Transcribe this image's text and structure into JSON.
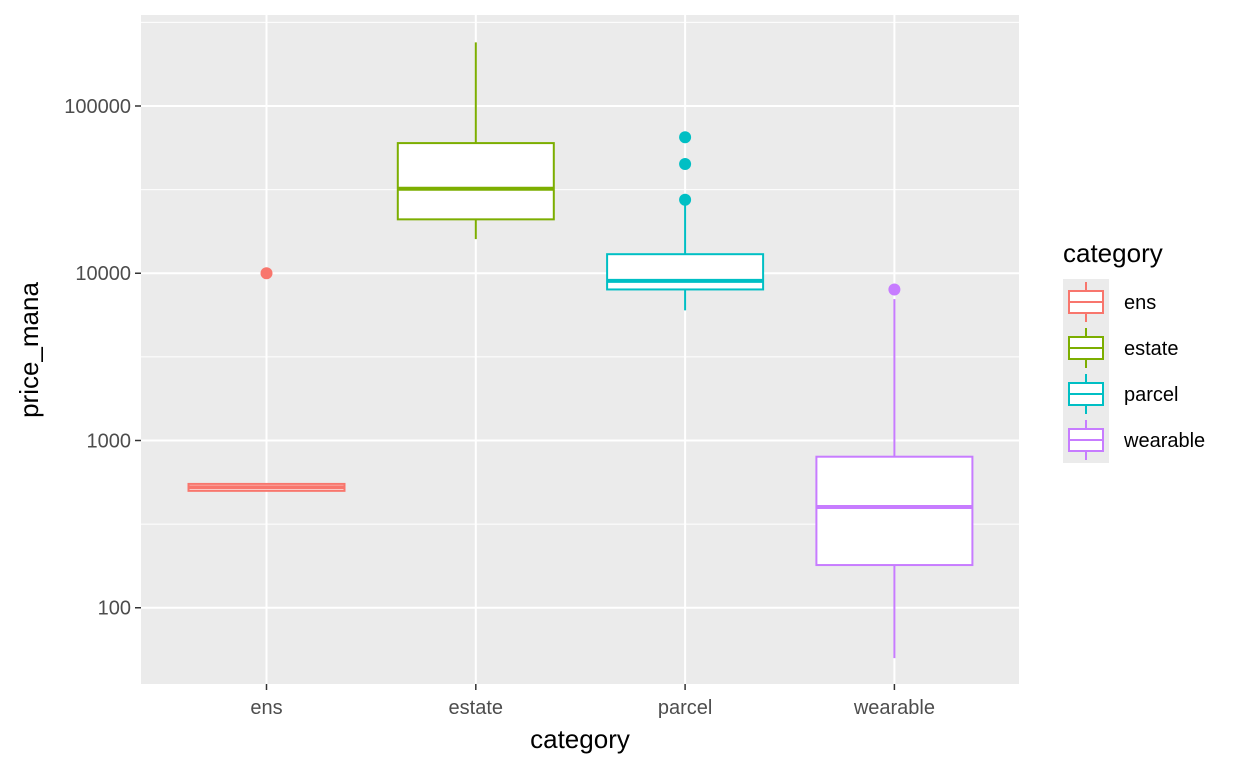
{
  "chart_data": {
    "type": "box",
    "title": "",
    "xlabel": "category",
    "ylabel": "price_mana",
    "y_scale": "log10",
    "ylim": [
      35,
      350000
    ],
    "y_ticks": [
      {
        "value": 100,
        "label": "100"
      },
      {
        "value": 1000,
        "label": "1000"
      },
      {
        "value": 10000,
        "label": "10000"
      },
      {
        "value": 100000,
        "label": "100000"
      }
    ],
    "grid": true,
    "legend": {
      "title": "category",
      "position": "right"
    },
    "categories": [
      "ens",
      "estate",
      "parcel",
      "wearable"
    ],
    "series": [
      {
        "name": "ens",
        "color": "#F8766D",
        "lower_whisker": 500,
        "q1": 500,
        "median": 525,
        "q3": 550,
        "upper_whisker": 550,
        "outliers": [
          10000
        ]
      },
      {
        "name": "estate",
        "color": "#7CAE00",
        "lower_whisker": 16000,
        "q1": 21000,
        "median": 32000,
        "q3": 60000,
        "upper_whisker": 240000,
        "outliers": []
      },
      {
        "name": "parcel",
        "color": "#00BFC4",
        "lower_whisker": 6000,
        "q1": 8000,
        "median": 9000,
        "q3": 13000,
        "upper_whisker": 26000,
        "outliers": [
          27500,
          45000,
          65000
        ]
      },
      {
        "name": "wearable",
        "color": "#C77CFF",
        "lower_whisker": 50,
        "q1": 180,
        "median": 400,
        "q3": 800,
        "upper_whisker": 7000,
        "outliers": [
          8000
        ]
      }
    ]
  }
}
